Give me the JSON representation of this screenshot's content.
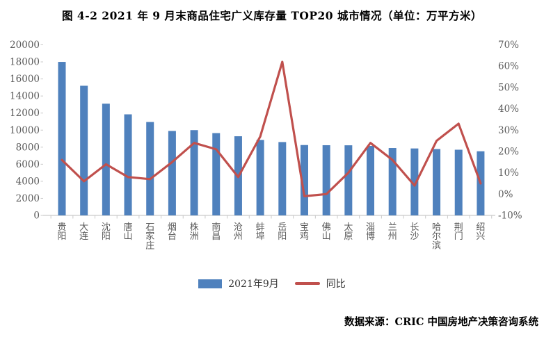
{
  "title": "图 4-2 2021 年 9 月末商品住宅广义库存量 TOP20 城市情况（单位：万平方米）",
  "source_note": "数据来源：CRIC 中国房地产决策咨询系统",
  "colors": {
    "bar": "#4f81bd",
    "line": "#c0504d",
    "axis_line": "#c9c9c9",
    "axis_text": "#5a5a5a",
    "background": "#ffffff"
  },
  "legend": {
    "items": [
      {
        "label": "2021年9月",
        "swatch": "bar-swatch",
        "color": "#4f81bd"
      },
      {
        "label": "同比",
        "swatch": "line-swatch",
        "color": "#c0504d"
      }
    ]
  },
  "chart_data": {
    "type": "bar+line combo",
    "categories": [
      "贵阳",
      "大连",
      "沈阳",
      "唐山",
      "石家庄",
      "烟台",
      "株洲",
      "南昌",
      "沧州",
      "蚌埠",
      "岳阳",
      "宝鸡",
      "佛山",
      "太原",
      "淄博",
      "兰州",
      "长沙",
      "哈尔滨",
      "荆门",
      "绍兴"
    ],
    "series": [
      {
        "name": "2021年9月",
        "type": "bar",
        "axis": "left",
        "color": "#4f81bd",
        "unit": "万平方米",
        "values": [
          18000,
          15200,
          13100,
          11850,
          10950,
          9900,
          10000,
          9650,
          9280,
          8850,
          8600,
          8250,
          8230,
          8220,
          8150,
          7900,
          7850,
          7780,
          7700,
          7520
        ]
      },
      {
        "name": "同比",
        "type": "line",
        "axis": "right",
        "color": "#c0504d",
        "unit": "%",
        "values": [
          16,
          6,
          14,
          8,
          7,
          15,
          24,
          21,
          8,
          27,
          62,
          -1,
          0,
          10,
          24,
          16,
          4,
          25,
          33,
          5
        ]
      }
    ],
    "left_axis": {
      "min": 0,
      "max": 20000,
      "step": 2000,
      "ticks": [
        0,
        2000,
        4000,
        6000,
        8000,
        10000,
        12000,
        14000,
        16000,
        18000,
        20000
      ]
    },
    "right_axis": {
      "min": -10,
      "max": 70,
      "step": 10,
      "unit": "%",
      "ticks": [
        "-10%",
        "0%",
        "10%",
        "20%",
        "30%",
        "40%",
        "50%",
        "60%",
        "70%"
      ]
    },
    "grid": "off",
    "legend_position": "bottom-center"
  }
}
